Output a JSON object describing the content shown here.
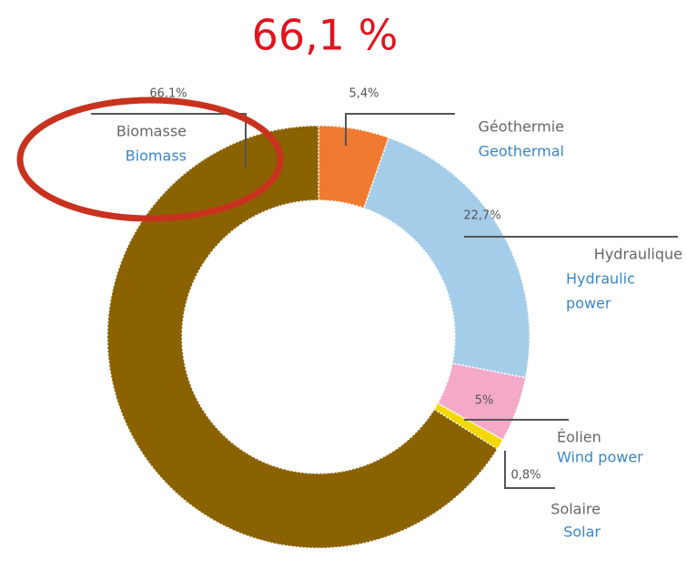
{
  "chart_data": {
    "type": "donut",
    "title": "66,1 %",
    "categories": [
      "Géothermie",
      "Hydraulique",
      "Éolien",
      "Solaire",
      "Biomasse"
    ],
    "categories_en": [
      [
        "Geothermal"
      ],
      [
        "Hydraulic",
        "power"
      ],
      [
        "Wind power"
      ],
      [
        "Solar"
      ],
      [
        "Biomass"
      ]
    ],
    "values": [
      5.4,
      22.7,
      5,
      0.8,
      66.1
    ],
    "value_labels": [
      "5,4%",
      "22,7%",
      "5%",
      "0,8%",
      "66,1%"
    ],
    "colors": [
      "#f07a30",
      "#a3cde8",
      "#f4a9c9",
      "#f5d800",
      "#8b6200"
    ]
  }
}
